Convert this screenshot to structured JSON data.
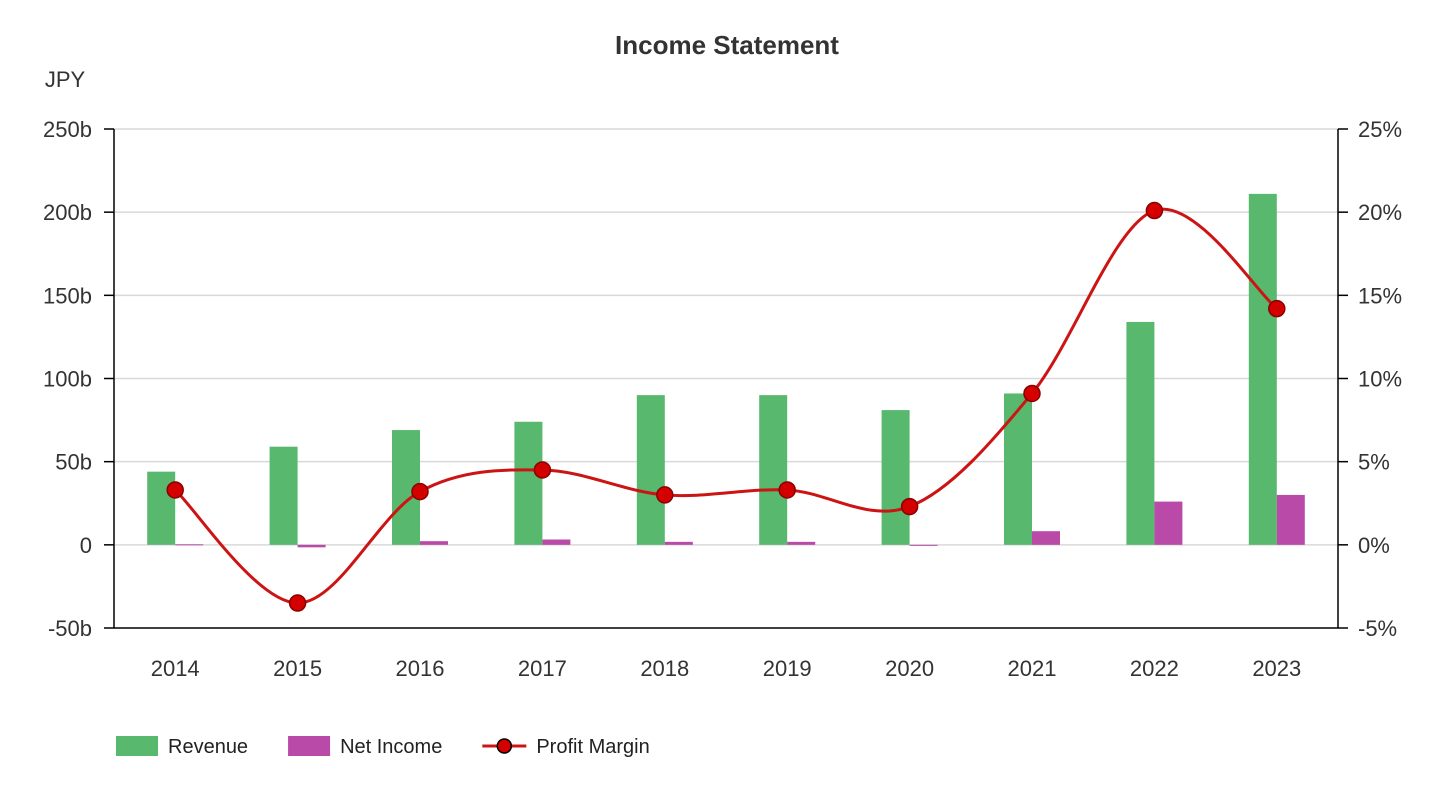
{
  "chart_data": {
    "type": "bar",
    "title": "Income Statement",
    "y_unit": "JPY",
    "categories": [
      "2014",
      "2015",
      "2016",
      "2017",
      "2018",
      "2019",
      "2020",
      "2021",
      "2022",
      "2023"
    ],
    "series": [
      {
        "name": "Revenue",
        "type": "bar",
        "axis": "left",
        "color": "#57b86e",
        "values": [
          44,
          59,
          69,
          74,
          90,
          90,
          81,
          91,
          134,
          211
        ]
      },
      {
        "name": "Net Income",
        "type": "bar",
        "axis": "left",
        "color": "#b94aa8",
        "values": [
          0.3,
          -1.5,
          2.2,
          3.2,
          1.8,
          1.8,
          -0.3,
          8.2,
          26,
          30
        ]
      },
      {
        "name": "Profit Margin",
        "type": "line",
        "axis": "right",
        "color": "#cc1414",
        "marker_color": "#d40000",
        "values": [
          3.3,
          -3.5,
          3.2,
          4.5,
          3.0,
          3.3,
          2.3,
          9.1,
          20.1,
          14.2
        ]
      }
    ],
    "y_left": {
      "min": -50,
      "max": 250,
      "ticks": [
        "-50b",
        "0",
        "50b",
        "100b",
        "150b",
        "200b",
        "250b"
      ],
      "tick_values": [
        -50,
        0,
        50,
        100,
        150,
        200,
        250
      ]
    },
    "y_right": {
      "min": -5,
      "max": 25,
      "ticks": [
        "-5%",
        "0%",
        "5%",
        "10%",
        "15%",
        "20%",
        "25%"
      ],
      "tick_values": [
        -5,
        0,
        5,
        10,
        15,
        20,
        25
      ]
    },
    "grid": true,
    "legend_position": "bottom-left"
  }
}
